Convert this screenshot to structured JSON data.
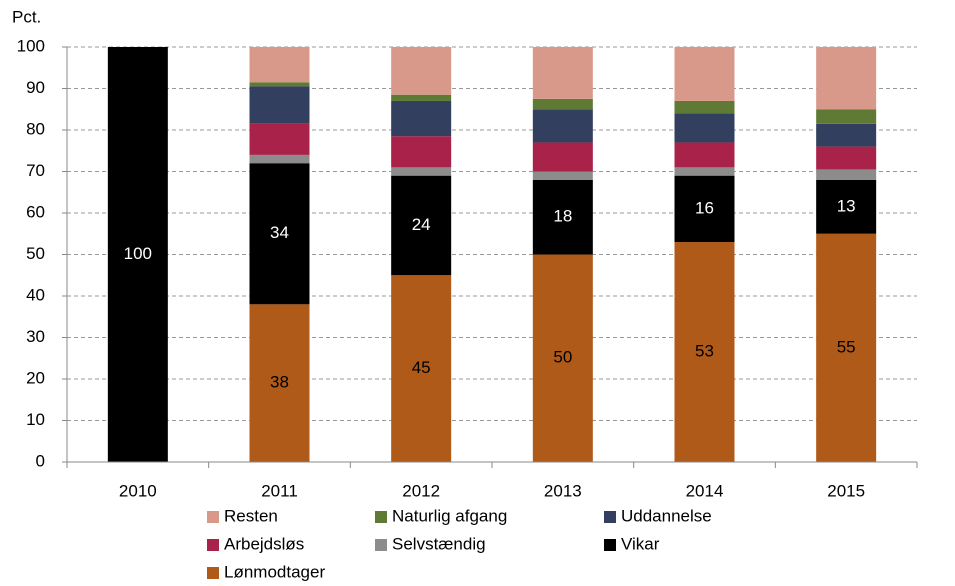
{
  "chart_data": {
    "type": "stacked_bar",
    "y_label": "Pct.",
    "categories": [
      "2010",
      "2011",
      "2012",
      "2013",
      "2014",
      "2015"
    ],
    "series": [
      {
        "name": "Lønmodtager",
        "color": "#b05a1a",
        "values": [
          0,
          38,
          45,
          50,
          53,
          55
        ],
        "data_labels": true
      },
      {
        "name": "Vikar",
        "color": "#000000",
        "values": [
          100,
          34,
          24,
          18,
          16,
          13
        ],
        "data_labels": true
      },
      {
        "name": "Selvstændig",
        "color": "#8c8c8c",
        "values": [
          0,
          2,
          2,
          2,
          2,
          2.5
        ]
      },
      {
        "name": "Arbejdsløs",
        "color": "#a8224a",
        "values": [
          0,
          7.5,
          7.5,
          7,
          6,
          5.5
        ]
      },
      {
        "name": "Uddannelse",
        "color": "#323f5f",
        "values": [
          0,
          9,
          8.5,
          8,
          7,
          5.5
        ]
      },
      {
        "name": "Naturlig afgang",
        "color": "#5e7a35",
        "values": [
          0,
          1,
          1.5,
          2.5,
          3,
          3.5
        ]
      },
      {
        "name": "Resten",
        "color": "#d9998a",
        "values": [
          0,
          8.5,
          11.5,
          12.5,
          13,
          15
        ]
      }
    ],
    "ylim": [
      0,
      100
    ],
    "yticks": [
      0,
      10,
      20,
      30,
      40,
      50,
      60,
      70,
      80,
      90,
      100
    ],
    "grid": true
  }
}
